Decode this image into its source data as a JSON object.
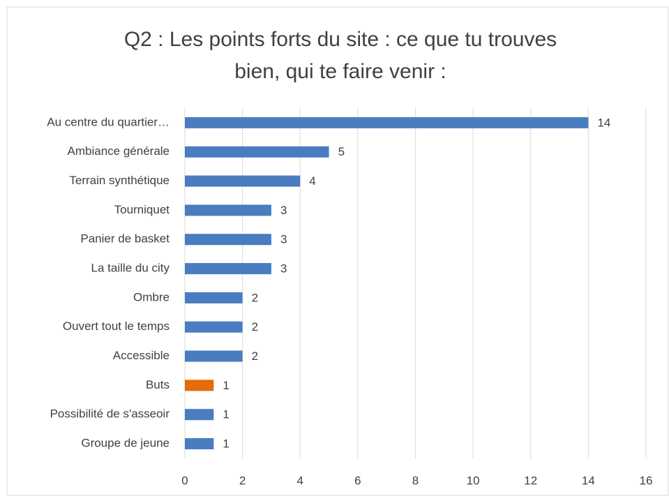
{
  "chart_data": {
    "type": "bar",
    "orientation": "horizontal",
    "title": [
      "Q2 : Les points forts du site : ce que tu trouves",
      "bien, qui te faire venir :"
    ],
    "categories": [
      "Au centre du quartier…",
      "Ambiance générale",
      "Terrain synthétique",
      "Tourniquet",
      "Panier de basket",
      "La taille du city",
      "Ombre",
      "Ouvert tout le temps",
      "Accessible",
      "Buts",
      "Possibilité de s'asseoir",
      "Groupe de jeune"
    ],
    "values": [
      14,
      5,
      4,
      3,
      3,
      3,
      2,
      2,
      2,
      1,
      1,
      1
    ],
    "colors": [
      "#4a7cc0",
      "#4a7cc0",
      "#4a7cc0",
      "#4a7cc0",
      "#4a7cc0",
      "#4a7cc0",
      "#4a7cc0",
      "#4a7cc0",
      "#4a7cc0",
      "#e46c0a",
      "#4a7cc0",
      "#4a7cc0"
    ],
    "xlim": [
      0,
      16
    ],
    "xticks": [
      0,
      2,
      4,
      6,
      8,
      10,
      12,
      14,
      16
    ],
    "grid": true
  }
}
